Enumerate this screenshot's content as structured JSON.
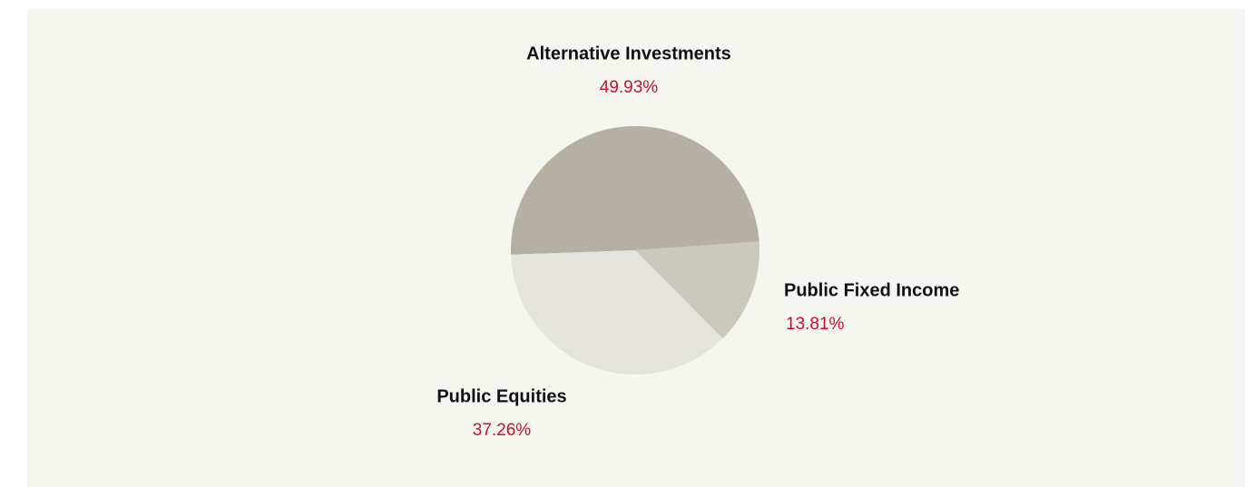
{
  "chart_data": {
    "type": "pie",
    "categories": [
      "Alternative Investments",
      "Public Fixed Income",
      "Public Equities"
    ],
    "values": [
      49.93,
      13.81,
      37.26
    ],
    "value_labels": [
      "49.93%",
      "13.81%",
      "37.26%"
    ],
    "colors": [
      "#b5b0a3",
      "#cbc8bc",
      "#e4e3de"
    ]
  }
}
